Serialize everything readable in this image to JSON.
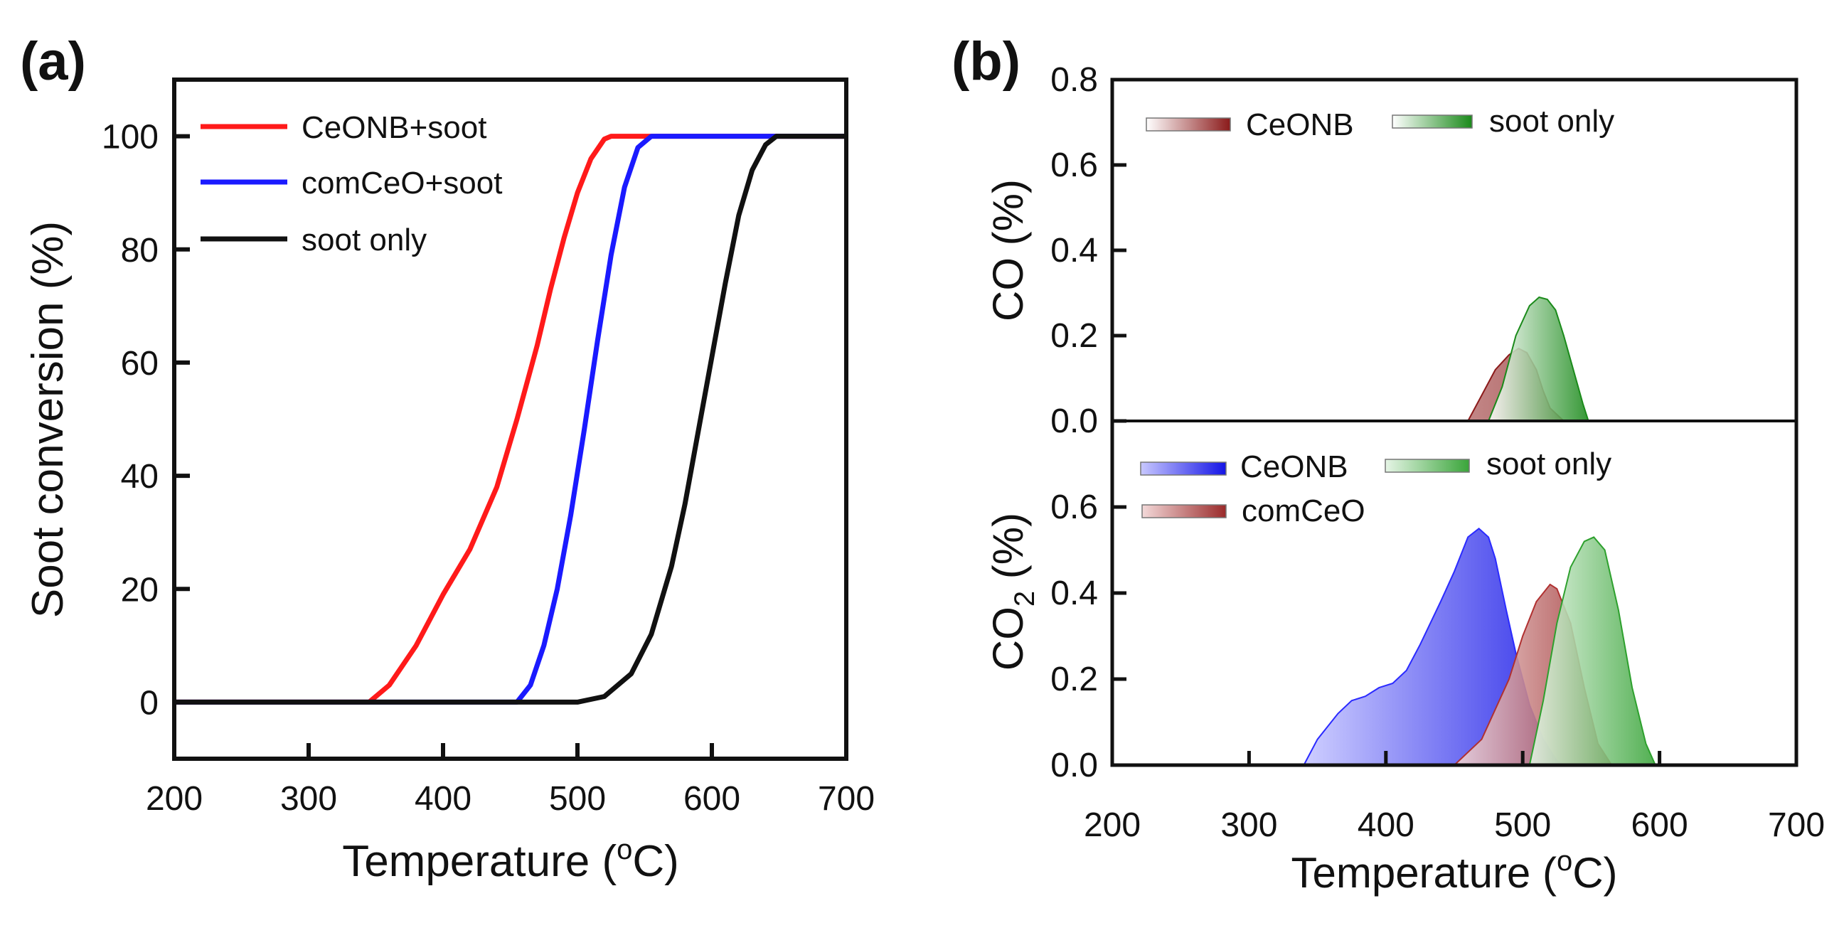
{
  "chart_data": [
    {
      "panel": "(a)",
      "type": "line",
      "title": "",
      "xlabel": "Temperature (°C)",
      "xlabel_parts": {
        "main": "Temperature (",
        "sup": "o",
        "unit": "C)"
      },
      "ylabel": "Soot conversion (%)",
      "xlim": [
        200,
        700
      ],
      "ylim": [
        -10,
        110
      ],
      "xticks": [
        200,
        300,
        400,
        500,
        600,
        700
      ],
      "yticks": [
        0,
        20,
        40,
        60,
        80,
        100
      ],
      "grid": false,
      "legend_position": "top-left",
      "series": [
        {
          "name": "CeONB+soot",
          "color": "#ff1a1a",
          "x": [
            200,
            300,
            345,
            360,
            380,
            400,
            420,
            440,
            455,
            470,
            480,
            490,
            500,
            510,
            520,
            525,
            700
          ],
          "y": [
            0,
            0,
            0,
            3,
            10,
            19,
            27,
            38,
            50,
            63,
            73,
            82,
            90,
            96,
            99.5,
            100,
            100
          ]
        },
        {
          "name": "comCeO+soot",
          "color": "#1a1aff",
          "x": [
            200,
            300,
            400,
            455,
            465,
            475,
            485,
            495,
            505,
            515,
            525,
            535,
            545,
            555,
            700
          ],
          "y": [
            0,
            0,
            0,
            0,
            3,
            10,
            20,
            33,
            48,
            64,
            79,
            91,
            98,
            100,
            100
          ]
        },
        {
          "name": "soot only",
          "color": "#111111",
          "x": [
            200,
            300,
            400,
            500,
            520,
            540,
            555,
            570,
            580,
            590,
            600,
            610,
            620,
            630,
            640,
            648,
            700
          ],
          "y": [
            0,
            0,
            0,
            0,
            1,
            5,
            12,
            24,
            35,
            48,
            61,
            74,
            86,
            94,
            98.5,
            100,
            100
          ]
        }
      ]
    },
    {
      "panel": "(b)",
      "type": "area",
      "title": "",
      "xlabel": "Temperature (°C)",
      "xlabel_parts": {
        "main": "Temperature (",
        "sup": "o",
        "unit": "C)"
      },
      "xlim": [
        200,
        700
      ],
      "xticks": [
        200,
        300,
        400,
        500,
        600,
        700
      ],
      "subplots": [
        {
          "position": "top",
          "ylabel": "CO (%)",
          "ylabel_parts": {
            "main": "CO (%)"
          },
          "ylim": [
            0,
            0.8
          ],
          "yticks": [
            "0.0",
            "0.2",
            "0.4",
            "0.6",
            "0.8"
          ],
          "legend_position": "top-left",
          "series": [
            {
              "name": "CeONB",
              "color": "#8b1a1a",
              "x": [
                235,
                460,
                470,
                480,
                490,
                497,
                503,
                510,
                515,
                520,
                530,
                612
              ],
              "y": [
                0,
                0,
                0.06,
                0.12,
                0.155,
                0.17,
                0.16,
                0.12,
                0.07,
                0.03,
                0,
                0
              ]
            },
            {
              "name": "soot only",
              "color": "#1a8a1a",
              "x": [
                475,
                485,
                495,
                505,
                512,
                518,
                524,
                530,
                537,
                544,
                548
              ],
              "y": [
                0,
                0.08,
                0.2,
                0.27,
                0.29,
                0.285,
                0.26,
                0.2,
                0.12,
                0.04,
                0
              ]
            }
          ]
        },
        {
          "position": "bottom",
          "ylabel": "CO2 (%)",
          "ylabel_parts": {
            "main": "CO",
            "sub": "2",
            "unit": " (%)"
          },
          "ylim": [
            0,
            0.8
          ],
          "yticks": [
            "0.0",
            "0.2",
            "0.4",
            "0.6"
          ],
          "legend_position": "top-left",
          "series": [
            {
              "name": "CeONB",
              "color": "#2a2aff",
              "x": [
                340,
                350,
                365,
                375,
                385,
                395,
                405,
                415,
                425,
                440,
                450,
                460,
                468,
                475,
                480,
                488,
                495,
                505,
                515,
                525,
                530
              ],
              "y": [
                0,
                0.06,
                0.12,
                0.15,
                0.16,
                0.18,
                0.19,
                0.22,
                0.28,
                0.38,
                0.45,
                0.53,
                0.55,
                0.53,
                0.48,
                0.36,
                0.26,
                0.14,
                0.06,
                0.01,
                0
              ]
            },
            {
              "name": "comCeO",
              "color": "#b03030",
              "x": [
                450,
                470,
                490,
                500,
                510,
                520,
                525,
                535,
                545,
                555,
                565
              ],
              "y": [
                0,
                0.06,
                0.2,
                0.3,
                0.38,
                0.42,
                0.41,
                0.33,
                0.18,
                0.05,
                0
              ]
            },
            {
              "name": "soot only",
              "color": "#2da02d",
              "x": [
                505,
                515,
                525,
                535,
                545,
                552,
                560,
                570,
                580,
                590,
                597
              ],
              "y": [
                0,
                0.15,
                0.33,
                0.46,
                0.52,
                0.53,
                0.5,
                0.36,
                0.18,
                0.05,
                0
              ]
            }
          ]
        }
      ]
    }
  ]
}
